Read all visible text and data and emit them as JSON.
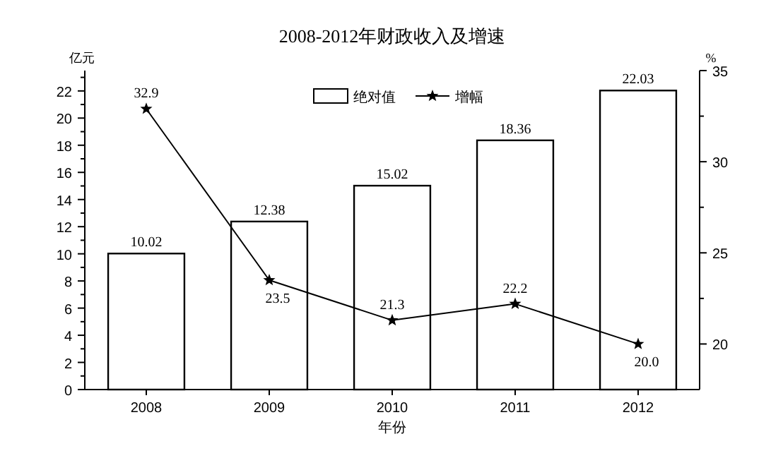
{
  "chart_data": {
    "type": "bar",
    "title": "2008-2012年财政收入及增速",
    "xlabel": "年份",
    "ylabel": "亿元",
    "y2label": "%",
    "categories": [
      "2008",
      "2009",
      "2010",
      "2011",
      "2012"
    ],
    "series": [
      {
        "name": "绝对值",
        "color": "#ffffff",
        "values": [
          10.02,
          12.38,
          15.02,
          18.36,
          22.03
        ],
        "value_labels": [
          "10.02",
          "12.38",
          "15.02",
          "18.36",
          "22.03"
        ]
      },
      {
        "name": "增幅",
        "type": "line",
        "axis": "y2",
        "color": "#000000",
        "marker": "star",
        "values": [
          32.9,
          23.5,
          21.3,
          22.2,
          20.0
        ],
        "value_labels": [
          "32.9",
          "23.5",
          "21.3",
          "22.2",
          "20.0"
        ]
      }
    ],
    "ylim": [
      0,
      23.5
    ],
    "yticks": [
      0,
      {
        "value": 1,
        "label": null
      },
      2,
      {
        "value": 3,
        "label": null
      },
      4,
      {
        "value": 5,
        "label": null
      },
      6,
      {
        "value": 7,
        "label": null
      },
      8,
      {
        "value": 9,
        "label": null
      },
      10,
      {
        "value": 11,
        "label": null
      },
      12,
      {
        "value": 13,
        "label": null
      },
      14,
      {
        "value": 15,
        "label": null
      },
      16,
      {
        "value": 17,
        "label": null
      },
      18,
      {
        "value": 19,
        "label": null
      },
      20,
      {
        "value": 21,
        "label": null
      },
      22,
      {
        "value": 23,
        "label": null
      }
    ],
    "y2lim": [
      17.5,
      35
    ],
    "y2ticks": [
      20,
      {
        "value": 22.5,
        "label": null
      },
      25,
      {
        "value": 27.5,
        "label": null
      },
      30,
      {
        "value": 32.5,
        "label": null
      },
      35
    ],
    "legend": "top",
    "grid": false
  }
}
